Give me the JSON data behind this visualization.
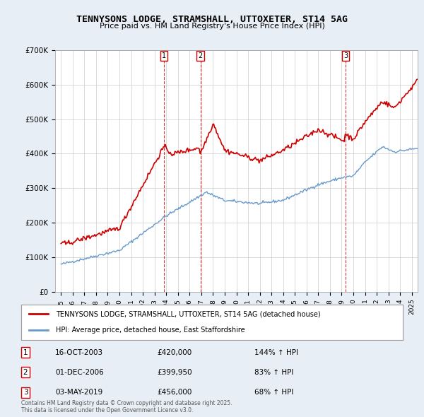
{
  "title": "TENNYSONS LODGE, STRAMSHALL, UTTOXETER, ST14 5AG",
  "subtitle": "Price paid vs. HM Land Registry's House Price Index (HPI)",
  "legend_property": "TENNYSONS LODGE, STRAMSHALL, UTTOXETER, ST14 5AG (detached house)",
  "legend_hpi": "HPI: Average price, detached house, East Staffordshire",
  "sales": [
    {
      "num": 1,
      "date_str": "16-OCT-2003",
      "date_dec": 2003.79,
      "price": 420000
    },
    {
      "num": 2,
      "date_str": "01-DEC-2006",
      "date_dec": 2006.92,
      "price": 399950
    },
    {
      "num": 3,
      "date_str": "03-MAY-2019",
      "date_dec": 2019.33,
      "price": 456000
    }
  ],
  "sale_pct": [
    "144% ↑ HPI",
    "83% ↑ HPI",
    "68% ↑ HPI"
  ],
  "footnote": "Contains HM Land Registry data © Crown copyright and database right 2025.\nThis data is licensed under the Open Government Licence v3.0.",
  "line_color_red": "#cc0000",
  "line_color_blue": "#6699cc",
  "vline_color": "#cc0000",
  "background_color": "#e8eef5",
  "plot_bg_color": "#ffffff",
  "ylim": [
    0,
    700000
  ],
  "xlim_start": 1994.5,
  "xlim_end": 2025.5,
  "yticks": [
    0,
    100000,
    200000,
    300000,
    400000,
    500000,
    600000,
    700000
  ],
  "ytick_labels": [
    "£0",
    "£100K",
    "£200K",
    "£300K",
    "£400K",
    "£500K",
    "£600K",
    "£700K"
  ],
  "xticks": [
    1995,
    1996,
    1997,
    1998,
    1999,
    2000,
    2001,
    2002,
    2003,
    2004,
    2005,
    2006,
    2007,
    2008,
    2009,
    2010,
    2011,
    2012,
    2013,
    2014,
    2015,
    2016,
    2017,
    2018,
    2019,
    2020,
    2021,
    2022,
    2023,
    2024,
    2025
  ]
}
